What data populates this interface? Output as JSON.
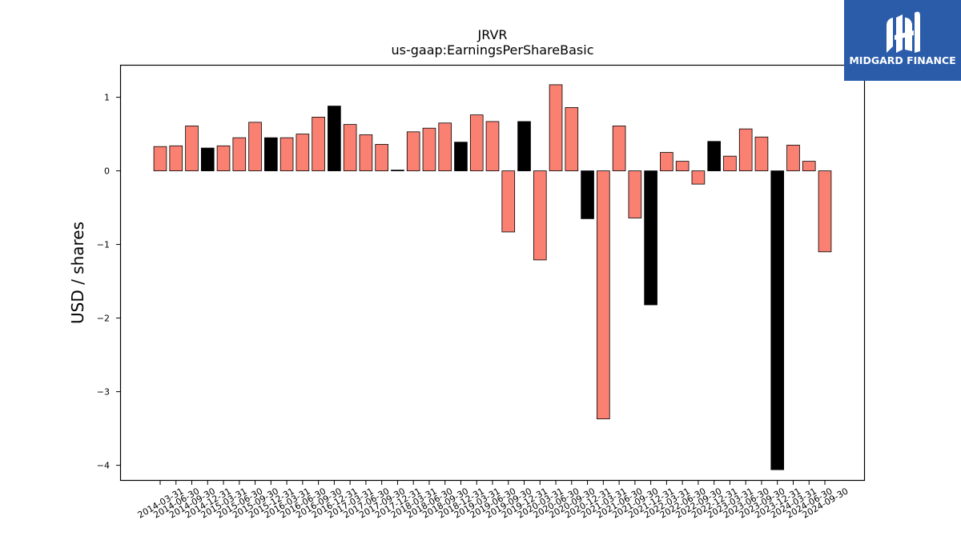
{
  "chart_data": {
    "type": "bar",
    "title": "JRVR",
    "subtitle": "us-gaap:EarningsPerShareBasic",
    "xlabel": "",
    "ylabel": "USD / shares",
    "ylim": [
      -4.2,
      1.43
    ],
    "yticks": [
      1,
      0,
      -1,
      -2,
      -3,
      -4
    ],
    "ytick_labels": [
      "1",
      "0",
      "−1",
      "−2",
      "−3",
      "−4"
    ],
    "grid": false,
    "categories": [
      "2014-03-31",
      "2014-06-30",
      "2014-09-30",
      "2014-12-31",
      "2015-03-31",
      "2015-06-30",
      "2015-09-30",
      "2015-12-31",
      "2016-03-31",
      "2016-06-30",
      "2016-09-30",
      "2016-12-31",
      "2017-03-31",
      "2017-06-30",
      "2017-09-30",
      "2017-12-31",
      "2018-03-31",
      "2018-06-30",
      "2018-09-30",
      "2018-12-31",
      "2019-03-31",
      "2019-06-30",
      "2019-09-30",
      "2019-12-31",
      "2020-03-31",
      "2020-06-30",
      "2020-09-30",
      "2020-12-31",
      "2021-03-31",
      "2021-06-30",
      "2021-09-30",
      "2021-12-31",
      "2022-03-31",
      "2022-06-30",
      "2022-09-30",
      "2022-12-31",
      "2023-03-31",
      "2023-06-30",
      "2023-09-30",
      "2023-12-31",
      "2024-03-31",
      "2024-06-30",
      "2024-09-30"
    ],
    "values": [
      0.33,
      0.34,
      0.61,
      0.31,
      0.34,
      0.45,
      0.66,
      0.45,
      0.45,
      0.5,
      0.73,
      0.88,
      0.63,
      0.49,
      0.36,
      0.01,
      0.53,
      0.58,
      0.65,
      0.39,
      0.76,
      0.67,
      -0.83,
      0.67,
      -1.21,
      1.17,
      0.86,
      -0.65,
      -3.37,
      0.61,
      -0.64,
      -1.82,
      0.25,
      0.13,
      -0.18,
      0.4,
      0.2,
      0.57,
      0.46,
      -4.06,
      0.35,
      0.13,
      -1.1
    ],
    "bar_colors": [
      "#fa8072",
      "#fa8072",
      "#fa8072",
      "#000000",
      "#fa8072",
      "#fa8072",
      "#fa8072",
      "#000000",
      "#fa8072",
      "#fa8072",
      "#fa8072",
      "#000000",
      "#fa8072",
      "#fa8072",
      "#fa8072",
      "#000000",
      "#fa8072",
      "#fa8072",
      "#fa8072",
      "#000000",
      "#fa8072",
      "#fa8072",
      "#fa8072",
      "#000000",
      "#fa8072",
      "#fa8072",
      "#fa8072",
      "#000000",
      "#fa8072",
      "#fa8072",
      "#fa8072",
      "#000000",
      "#fa8072",
      "#fa8072",
      "#fa8072",
      "#000000",
      "#fa8072",
      "#fa8072",
      "#fa8072",
      "#000000",
      "#fa8072",
      "#fa8072",
      "#fa8072"
    ]
  },
  "logo": {
    "text": "MIDGARD FINANCE",
    "background": "#2a5caa",
    "icon": "midgard-logo-icon"
  },
  "colors": {
    "quarter_bar": "#fa8072",
    "year_end_bar": "#000000"
  }
}
